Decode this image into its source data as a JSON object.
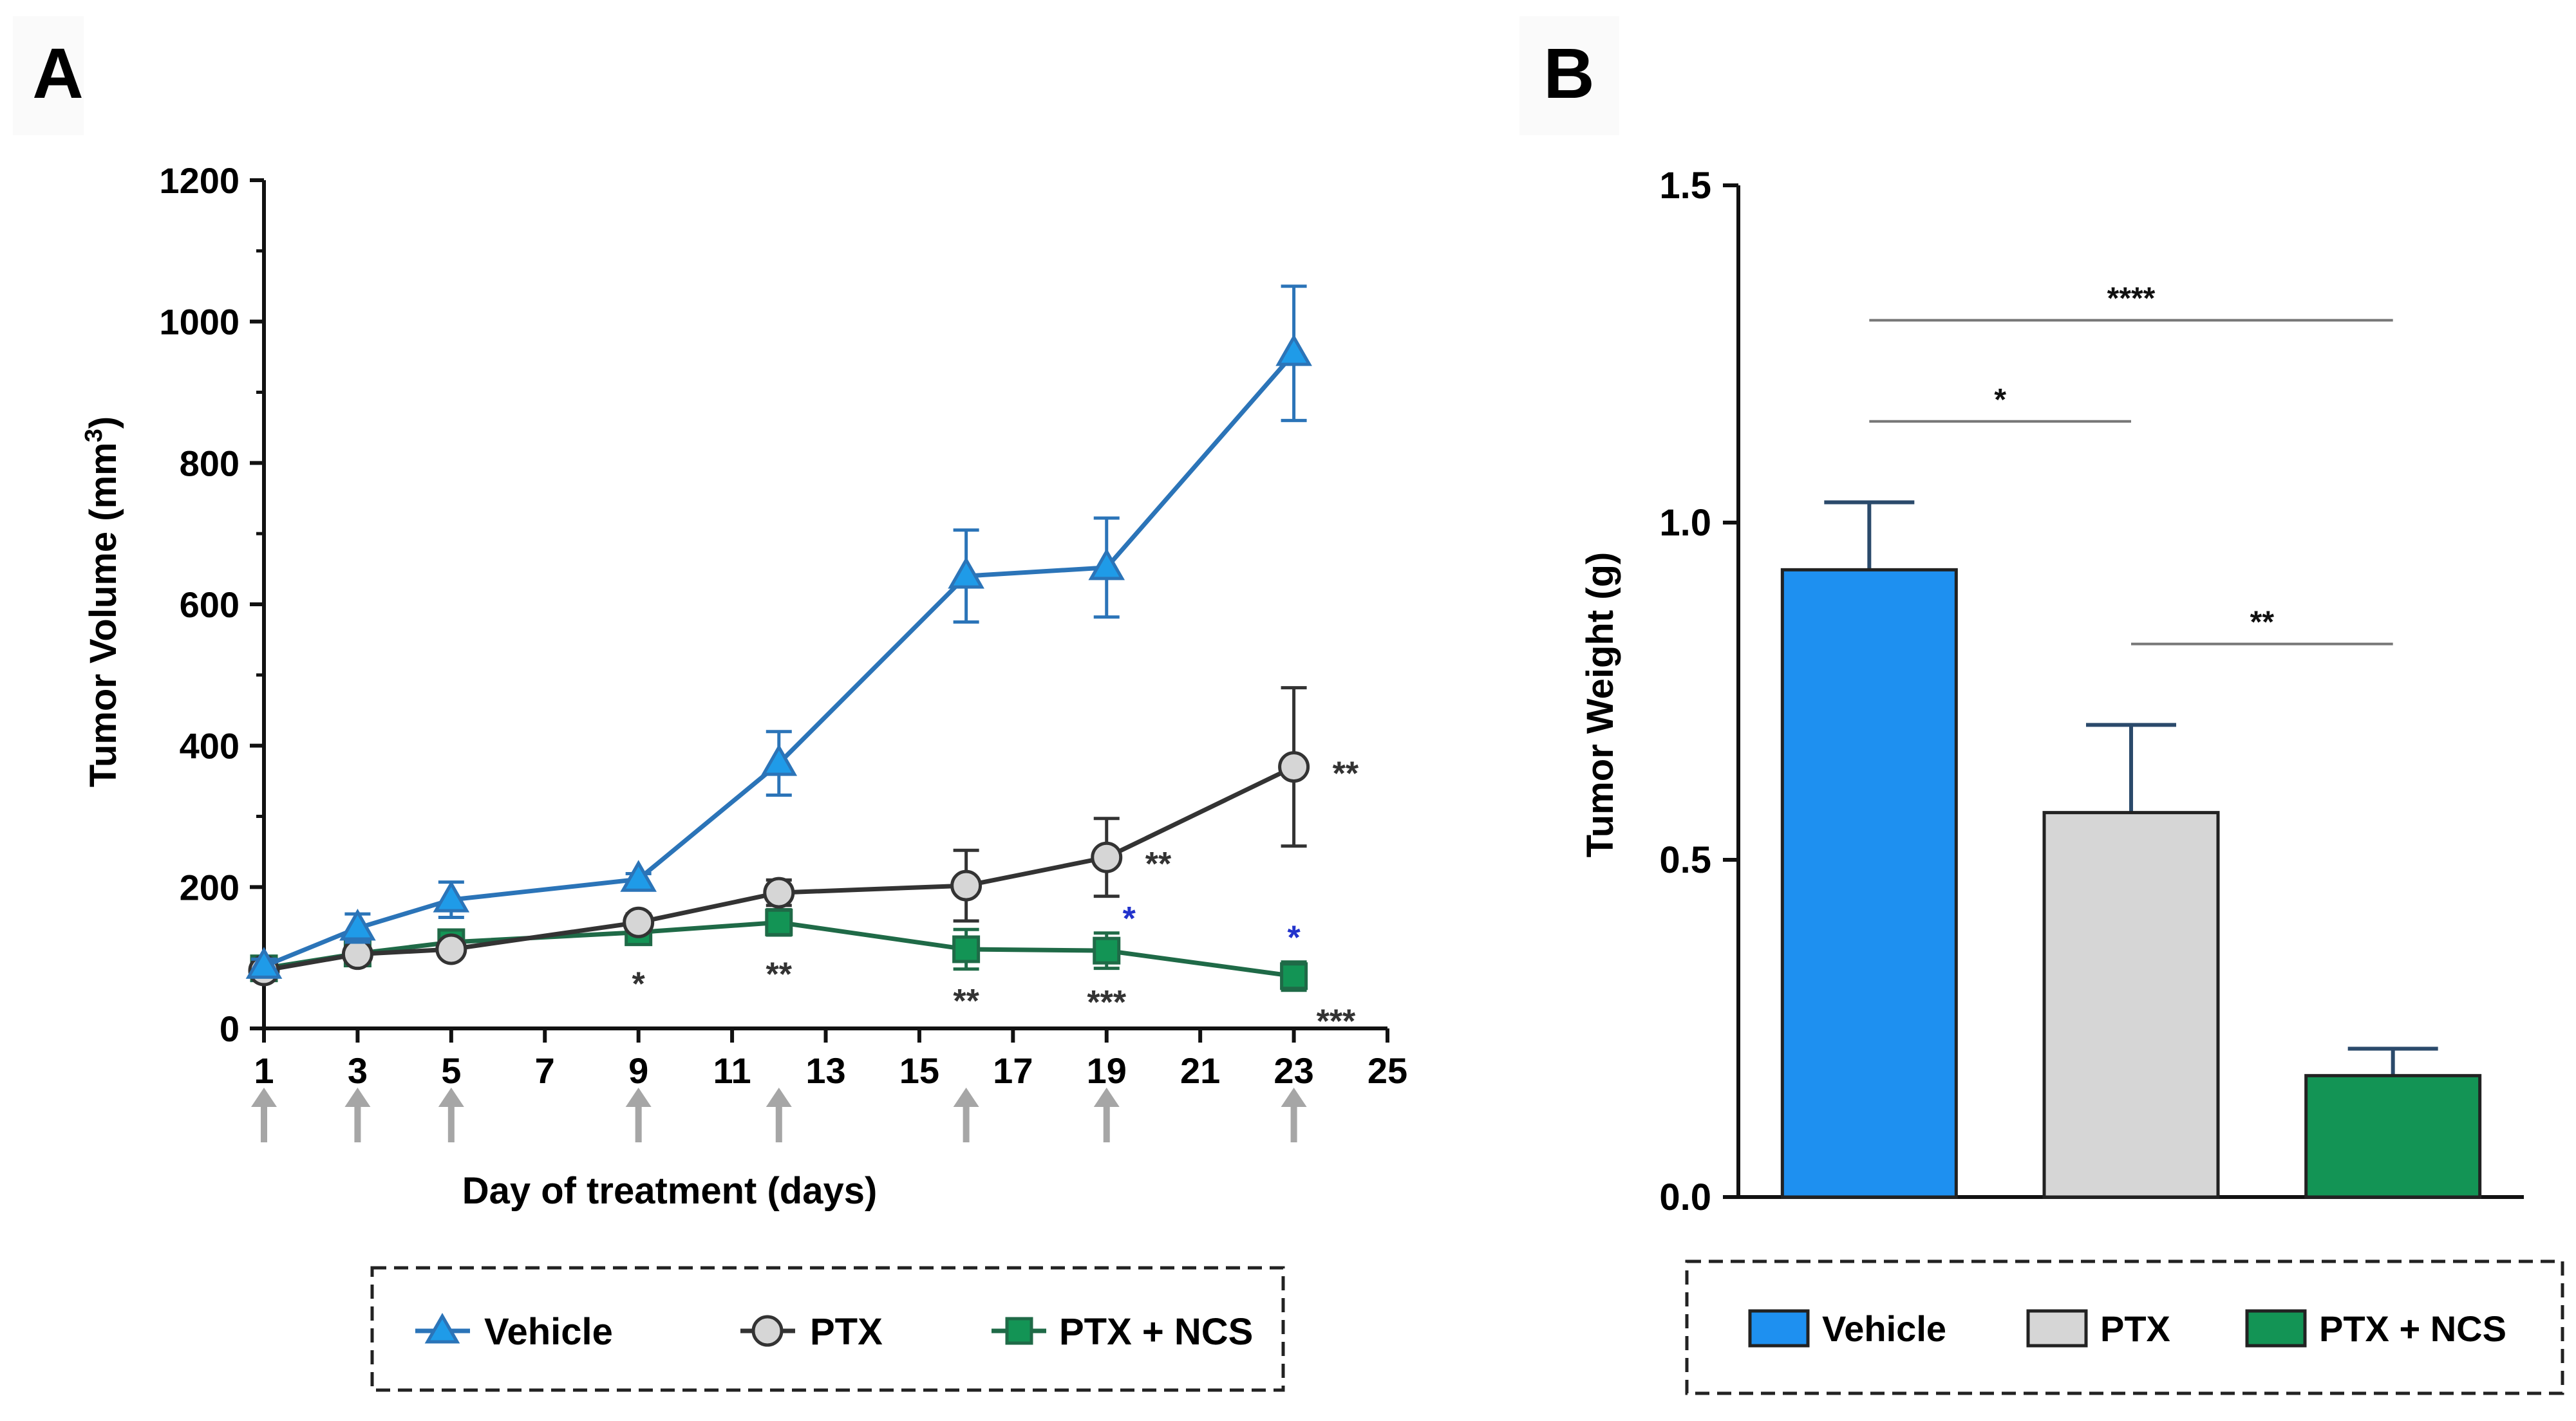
{
  "chart_data": [
    {
      "panel": "A",
      "type": "line",
      "xlabel": "Day of treatment (days)",
      "ylabel": "Tumor Volume (mm",
      "ylabel_sup": "3",
      "ylabel_close": ")",
      "xlim": [
        1,
        25
      ],
      "ylim": [
        0,
        1200
      ],
      "xticks": [
        1,
        3,
        5,
        7,
        9,
        11,
        13,
        15,
        17,
        19,
        21,
        23,
        25
      ],
      "yticks": [
        0,
        200,
        400,
        600,
        800,
        1000,
        1200
      ],
      "treatment_days": [
        1,
        3,
        5,
        9,
        12,
        16,
        19,
        23
      ],
      "series": [
        {
          "name": "Vehicle",
          "marker": "triangle",
          "color": "#2b74b8",
          "fill": "#1f9be8",
          "x": [
            1,
            3,
            5,
            9,
            12,
            16,
            19,
            23
          ],
          "y": [
            88,
            142,
            182,
            211,
            375,
            640,
            652,
            955
          ],
          "err": [
            10,
            20,
            25,
            8,
            45,
            65,
            70,
            95
          ]
        },
        {
          "name": "PTX",
          "marker": "circle",
          "color": "#333333",
          "fill": "#d6d6d6",
          "x": [
            1,
            3,
            5,
            9,
            12,
            16,
            19,
            23
          ],
          "y": [
            82,
            105,
            112,
            150,
            192,
            202,
            242,
            370
          ],
          "err": [
            8,
            10,
            10,
            12,
            18,
            50,
            55,
            112
          ]
        },
        {
          "name": "PTX + NCS",
          "marker": "square",
          "color": "#1f6a47",
          "fill": "#139455",
          "x": [
            1,
            3,
            5,
            9,
            12,
            16,
            19,
            23
          ],
          "y": [
            85,
            106,
            122,
            136,
            150,
            112,
            110,
            74
          ],
          "err": [
            8,
            8,
            10,
            10,
            18,
            28,
            25,
            20
          ]
        }
      ],
      "annotations": [
        {
          "x": 9,
          "y": 136,
          "text": "*",
          "color": "#333333",
          "pos": "below"
        },
        {
          "x": 12,
          "y": 150,
          "text": "**",
          "color": "#333333",
          "pos": "below"
        },
        {
          "x": 16,
          "y": 112,
          "text": "**",
          "color": "#333333",
          "pos": "below"
        },
        {
          "x": 19,
          "y": 110,
          "text": "***",
          "color": "#333333",
          "pos": "below"
        },
        {
          "x": 23,
          "y": 74,
          "text": "***",
          "color": "#333333",
          "pos": "below-right"
        },
        {
          "x": 19,
          "y": 242,
          "text": "**",
          "color": "#333333",
          "pos": "right"
        },
        {
          "x": 23,
          "y": 370,
          "text": "**",
          "color": "#333333",
          "pos": "right"
        },
        {
          "x": 19,
          "y": 110,
          "text": "*",
          "color": "#2233cc",
          "pos": "above-right"
        },
        {
          "x": 23,
          "y": 74,
          "text": "*",
          "color": "#2233cc",
          "pos": "above"
        }
      ]
    },
    {
      "panel": "B",
      "type": "bar",
      "xlabel": "",
      "ylabel": "Tumor Weight (g)",
      "ylim": [
        0,
        1.5
      ],
      "yticks": [
        "0.0",
        "0.5",
        "1.0",
        "1.5"
      ],
      "categories": [
        "Vehicle",
        "PTX",
        "PTX + NCS"
      ],
      "values": [
        0.93,
        0.57,
        0.18
      ],
      "err": [
        0.1,
        0.13,
        0.04
      ],
      "colors": [
        "#1e90f0",
        "#d6d6d6",
        "#139455"
      ],
      "significance": [
        {
          "from": 0,
          "to": 2,
          "label": "****",
          "y": 1.3
        },
        {
          "from": 0,
          "to": 1,
          "label": "*",
          "y": 1.15
        },
        {
          "from": 1,
          "to": 2,
          "label": "**",
          "y": 0.82
        }
      ]
    }
  ],
  "panel_labels": {
    "a": "A",
    "b": "B"
  },
  "legend_a": [
    "Vehicle",
    "PTX",
    "PTX + NCS"
  ],
  "legend_b": [
    "Vehicle",
    "PTX",
    "PTX + NCS"
  ]
}
